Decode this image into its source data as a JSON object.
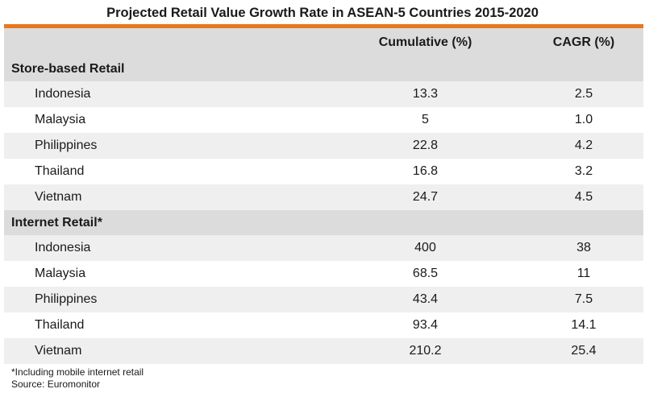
{
  "title": "Projected Retail Value Growth Rate in ASEAN-5 Countries 2015-2020",
  "colors": {
    "accent": "#e8771e",
    "header_bg": "#dcdcdc",
    "row_shade": "#efefef"
  },
  "columns": [
    "",
    "Cumulative (%)",
    "CAGR (%)"
  ],
  "groups": [
    {
      "label": "Store-based Retail",
      "rows": [
        {
          "country": "Indonesia",
          "cumulative": "13.3",
          "cagr": "2.5"
        },
        {
          "country": "Malaysia",
          "cumulative": "5",
          "cagr": "1.0"
        },
        {
          "country": "Philippines",
          "cumulative": "22.8",
          "cagr": "4.2"
        },
        {
          "country": "Thailand",
          "cumulative": "16.8",
          "cagr": "3.2"
        },
        {
          "country": "Vietnam",
          "cumulative": "24.7",
          "cagr": "4.5"
        }
      ]
    },
    {
      "label": "Internet Retail*",
      "rows": [
        {
          "country": "Indonesia",
          "cumulative": "400",
          "cagr": "38"
        },
        {
          "country": "Malaysia",
          "cumulative": "68.5",
          "cagr": "11"
        },
        {
          "country": "Philippines",
          "cumulative": "43.4",
          "cagr": "7.5"
        },
        {
          "country": "Thailand",
          "cumulative": "93.4",
          "cagr": "14.1"
        },
        {
          "country": "Vietnam",
          "cumulative": "210.2",
          "cagr": "25.4"
        }
      ]
    }
  ],
  "footnote": "*Including mobile internet retail",
  "source": "Source: Euromonitor",
  "chart_data": {
    "type": "table",
    "title": "Projected Retail Value Growth Rate in ASEAN-5 Countries 2015-2020",
    "columns": [
      "",
      "Cumulative (%)",
      "CAGR (%)"
    ],
    "rows": [
      [
        "Store-based Retail",
        "",
        ""
      ],
      [
        "Indonesia",
        13.3,
        2.5
      ],
      [
        "Malaysia",
        5,
        1.0
      ],
      [
        "Philippines",
        22.8,
        4.2
      ],
      [
        "Thailand",
        16.8,
        3.2
      ],
      [
        "Vietnam",
        24.7,
        4.5
      ],
      [
        "Internet Retail*",
        "",
        ""
      ],
      [
        "Indonesia",
        400,
        38
      ],
      [
        "Malaysia",
        68.5,
        11
      ],
      [
        "Philippines",
        43.4,
        7.5
      ],
      [
        "Thailand",
        93.4,
        14.1
      ],
      [
        "Vietnam",
        210.2,
        25.4
      ]
    ]
  }
}
